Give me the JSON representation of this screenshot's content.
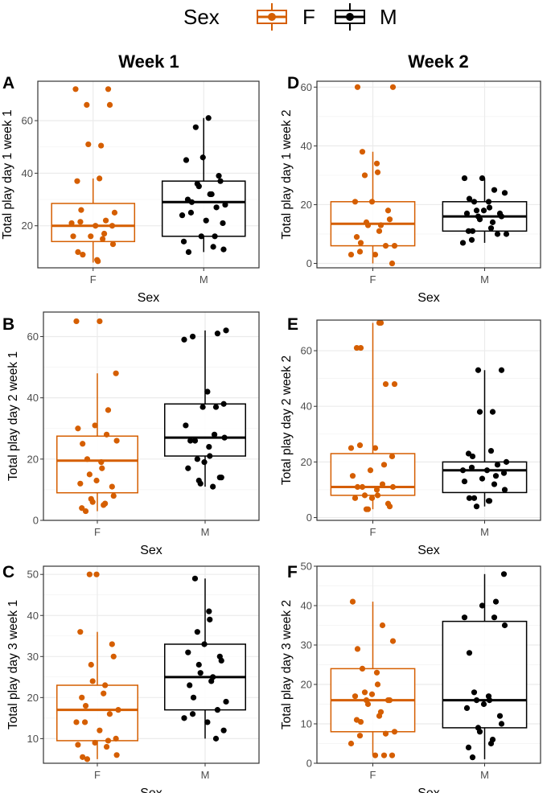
{
  "colors": {
    "F": "#d55e00",
    "M": "#000000",
    "grid": "#ebebeb",
    "tick": "#4d4d4d",
    "border": "#333333"
  },
  "legend": {
    "title": "Sex",
    "items": [
      {
        "key": "F",
        "label": "F"
      },
      {
        "key": "M",
        "label": "M"
      }
    ]
  },
  "column_titles": [
    "Week 1",
    "Week 2"
  ],
  "chart_data": [
    {
      "type": "boxplot",
      "panel": "A",
      "xlabel": "Sex",
      "ylabel": "Total play day 1 week 1",
      "categories": [
        "F",
        "M"
      ],
      "ylim": [
        4,
        75
      ],
      "yticks": [
        20,
        40,
        60
      ],
      "series": [
        {
          "name": "F",
          "box": {
            "min": 6,
            "q1": 14,
            "median": 20,
            "q3": 28.5,
            "max": 38
          },
          "points": [
            72,
            72,
            66,
            66,
            51,
            50.5,
            38,
            37,
            26,
            25,
            22,
            21.5,
            21,
            20,
            20,
            17,
            16,
            16,
            15,
            13,
            10,
            9,
            7,
            6.5
          ]
        },
        {
          "name": "M",
          "box": {
            "min": 10,
            "q1": 16,
            "median": 29,
            "q3": 37,
            "max": 61
          },
          "points": [
            61,
            57.5,
            46,
            45,
            39,
            37,
            36,
            35,
            32,
            32,
            30,
            29,
            28,
            27,
            25,
            24,
            22,
            21,
            16,
            16,
            14,
            12,
            11,
            10
          ]
        }
      ]
    },
    {
      "type": "boxplot",
      "panel": "D",
      "xlabel": "Sex",
      "ylabel": "Total play day 1 week 2",
      "categories": [
        "F",
        "M"
      ],
      "ylim": [
        -1.5,
        62
      ],
      "yticks": [
        0,
        20,
        40,
        60
      ],
      "series": [
        {
          "name": "F",
          "box": {
            "min": 0,
            "q1": 6,
            "median": 13.5,
            "q3": 21,
            "max": 38
          },
          "points": [
            60,
            60,
            38,
            34,
            31,
            30,
            21,
            21,
            18,
            15,
            14,
            13,
            13,
            11,
            9,
            7,
            6,
            6,
            4,
            3,
            3,
            0
          ]
        },
        {
          "name": "M",
          "box": {
            "min": 7,
            "q1": 11,
            "median": 16,
            "q3": 21,
            "max": 29
          },
          "points": [
            29,
            29,
            25,
            24,
            22,
            21,
            21,
            19,
            18,
            18,
            17,
            17,
            16,
            16,
            15,
            14,
            12,
            11,
            11,
            10,
            10,
            8,
            7
          ]
        }
      ]
    },
    {
      "type": "boxplot",
      "panel": "B",
      "xlabel": "Sex",
      "ylabel": "Total play day 2 week 1",
      "categories": [
        "F",
        "M"
      ],
      "ylim": [
        0,
        68
      ],
      "yticks": [
        0,
        20,
        40,
        60
      ],
      "series": [
        {
          "name": "F",
          "box": {
            "min": 3,
            "q1": 9,
            "median": 19.5,
            "q3": 27.5,
            "max": 48
          },
          "points": [
            65,
            65,
            48,
            36,
            31,
            30,
            28,
            26,
            25,
            20,
            19,
            17,
            15,
            13,
            12,
            11,
            8,
            7,
            6,
            5.5,
            5,
            4,
            3
          ]
        },
        {
          "name": "M",
          "box": {
            "min": 11,
            "q1": 21,
            "median": 27,
            "q3": 38,
            "max": 62
          },
          "points": [
            62,
            61,
            60,
            59,
            42,
            38,
            37,
            37,
            31,
            28,
            27,
            26,
            26,
            24,
            21,
            20,
            19,
            17,
            14,
            14,
            13,
            12,
            11
          ]
        }
      ]
    },
    {
      "type": "boxplot",
      "panel": "E",
      "xlabel": "Sex",
      "ylabel": "Total play day 2 week 2",
      "categories": [
        "F",
        "M"
      ],
      "ylim": [
        -1,
        71
      ],
      "yticks": [
        0,
        20,
        40,
        60
      ],
      "series": [
        {
          "name": "F",
          "box": {
            "min": 3,
            "q1": 8,
            "median": 11,
            "q3": 23,
            "max": 70
          },
          "points": [
            70,
            70,
            61,
            61,
            48,
            48,
            26,
            25,
            25,
            22,
            19,
            17,
            15,
            12,
            11,
            11,
            11,
            10,
            8,
            8,
            7,
            7,
            5,
            4,
            3,
            3
          ]
        },
        {
          "name": "M",
          "box": {
            "min": 4,
            "q1": 9,
            "median": 17,
            "q3": 20,
            "max": 53
          },
          "points": [
            53,
            53,
            38,
            38,
            24,
            23,
            22,
            20,
            19,
            18,
            17,
            17,
            16,
            15,
            14,
            13,
            12,
            10,
            7,
            7,
            6,
            6,
            4
          ]
        }
      ]
    },
    {
      "type": "boxplot",
      "panel": "C",
      "xlabel": "Sex",
      "ylabel": "Total play day 3 week 1",
      "categories": [
        "F",
        "M"
      ],
      "ylim": [
        4,
        52
      ],
      "yticks": [
        10,
        20,
        30,
        40,
        50
      ],
      "series": [
        {
          "name": "F",
          "box": {
            "min": 5,
            "q1": 9.5,
            "median": 17,
            "q3": 23,
            "max": 36
          },
          "points": [
            50,
            50,
            36,
            33,
            30,
            28,
            24,
            23,
            21,
            20,
            18,
            17,
            16,
            14,
            14,
            12,
            10,
            9.5,
            9,
            8.5,
            8,
            6,
            5.5,
            5
          ]
        },
        {
          "name": "M",
          "box": {
            "min": 10,
            "q1": 17,
            "median": 25,
            "q3": 33,
            "max": 49
          },
          "points": [
            49,
            41,
            39,
            36,
            33,
            31,
            30,
            29,
            28,
            26,
            25,
            24,
            23,
            20,
            19,
            17,
            16,
            15,
            14,
            12,
            10
          ]
        }
      ]
    },
    {
      "type": "boxplot",
      "panel": "F",
      "xlabel": "Sex",
      "ylabel": "Total play day 3 week 2",
      "categories": [
        "F",
        "M"
      ],
      "ylim": [
        0,
        50
      ],
      "yticks": [
        0,
        10,
        20,
        30,
        40,
        50
      ],
      "series": [
        {
          "name": "F",
          "box": {
            "min": 2,
            "q1": 8,
            "median": 16,
            "q3": 24,
            "max": 41
          },
          "points": [
            41,
            35,
            31,
            29,
            24,
            23,
            20,
            18,
            17.5,
            17,
            16,
            16,
            16,
            15,
            13,
            12,
            11,
            10.5,
            8,
            7.5,
            7,
            5,
            2,
            2,
            2
          ]
        },
        {
          "name": "M",
          "box": {
            "min": 1,
            "q1": 9,
            "median": 16,
            "q3": 36,
            "max": 48
          },
          "points": [
            48,
            41,
            40,
            37,
            37,
            35,
            28,
            18,
            17,
            16,
            16,
            15,
            14,
            12,
            10,
            9,
            8,
            6,
            5,
            4,
            1.5
          ]
        }
      ]
    }
  ]
}
